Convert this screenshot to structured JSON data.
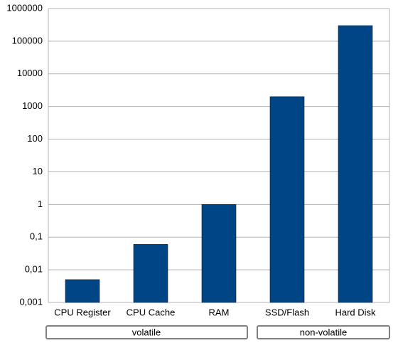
{
  "chart_data": {
    "type": "bar",
    "categories": [
      "CPU Register",
      "CPU Cache",
      "RAM",
      "SSD/Flash",
      "Hard Disk"
    ],
    "values": [
      0.005,
      0.06,
      1,
      2000,
      300000
    ],
    "color": "#004586",
    "log_scale": true,
    "ylim": [
      0.001,
      1000000
    ],
    "yticks": [
      {
        "value": 0.001,
        "label": "0,001"
      },
      {
        "value": 0.01,
        "label": "0,01"
      },
      {
        "value": 0.1,
        "label": "0,1"
      },
      1,
      10,
      100,
      1000,
      10000,
      100000,
      1000000
    ],
    "grid": true,
    "groups": [
      "volatile",
      "non-volatile"
    ]
  }
}
